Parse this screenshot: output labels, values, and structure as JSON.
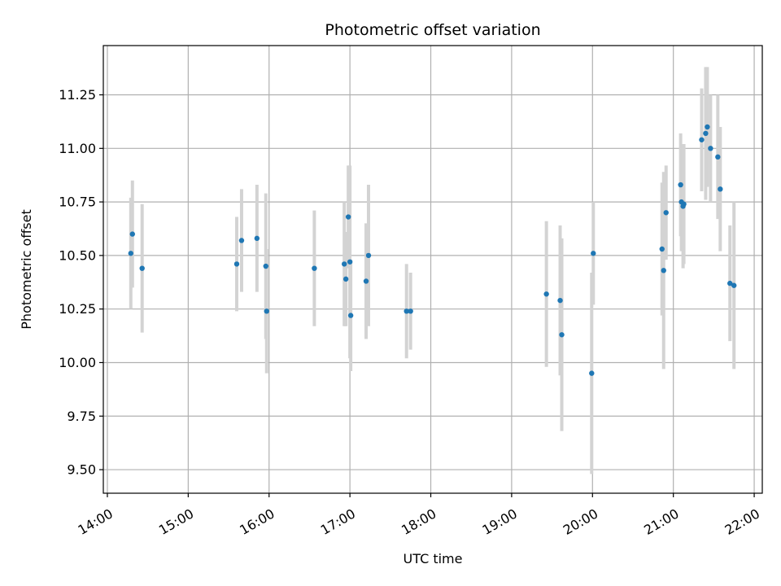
{
  "chart_data": {
    "type": "scatter",
    "title": "Photometric offset variation",
    "xlabel": "UTC time",
    "ylabel": "Photometric offset",
    "x_unit": "hours UTC",
    "xlim": [
      13.95,
      22.1
    ],
    "ylim": [
      9.39,
      11.48
    ],
    "x_ticks": [
      {
        "value": 14,
        "label": "14:00"
      },
      {
        "value": 15,
        "label": "15:00"
      },
      {
        "value": 16,
        "label": "16:00"
      },
      {
        "value": 17,
        "label": "17:00"
      },
      {
        "value": 18,
        "label": "18:00"
      },
      {
        "value": 19,
        "label": "19:00"
      },
      {
        "value": 20,
        "label": "20:00"
      },
      {
        "value": 21,
        "label": "21:00"
      },
      {
        "value": 22,
        "label": "22:00"
      }
    ],
    "y_ticks": [
      {
        "value": 9.5,
        "label": "9.50"
      },
      {
        "value": 9.75,
        "label": "9.75"
      },
      {
        "value": 10.0,
        "label": "10.00"
      },
      {
        "value": 10.25,
        "label": "10.25"
      },
      {
        "value": 10.5,
        "label": "10.50"
      },
      {
        "value": 10.75,
        "label": "10.75"
      },
      {
        "value": 11.0,
        "label": "11.00"
      },
      {
        "value": 11.25,
        "label": "11.25"
      }
    ],
    "grid": true,
    "colors": {
      "point": "#1f77b4",
      "errorbar": "#d3d3d3",
      "grid": "#b0b0b0"
    },
    "points": [
      {
        "x": 14.29,
        "y": 10.51,
        "yerr": 0.26
      },
      {
        "x": 14.31,
        "y": 10.6,
        "yerr": 0.25
      },
      {
        "x": 14.43,
        "y": 10.44,
        "yerr": 0.3
      },
      {
        "x": 15.6,
        "y": 10.46,
        "yerr": 0.22
      },
      {
        "x": 15.66,
        "y": 10.57,
        "yerr": 0.24
      },
      {
        "x": 15.85,
        "y": 10.58,
        "yerr": 0.25
      },
      {
        "x": 15.96,
        "y": 10.45,
        "yerr": 0.34
      },
      {
        "x": 15.97,
        "y": 10.24,
        "yerr": 0.29
      },
      {
        "x": 16.56,
        "y": 10.44,
        "yerr": 0.27
      },
      {
        "x": 16.93,
        "y": 10.46,
        "yerr": 0.29
      },
      {
        "x": 16.95,
        "y": 10.39,
        "yerr": 0.22
      },
      {
        "x": 16.98,
        "y": 10.68,
        "yerr": 0.24
      },
      {
        "x": 17.0,
        "y": 10.47,
        "yerr": 0.45
      },
      {
        "x": 17.01,
        "y": 10.22,
        "yerr": 0.26
      },
      {
        "x": 17.2,
        "y": 10.38,
        "yerr": 0.27
      },
      {
        "x": 17.23,
        "y": 10.5,
        "yerr": 0.33
      },
      {
        "x": 17.7,
        "y": 10.24,
        "yerr": 0.22
      },
      {
        "x": 17.75,
        "y": 10.24,
        "yerr": 0.18
      },
      {
        "x": 19.43,
        "y": 10.32,
        "yerr": 0.34
      },
      {
        "x": 19.6,
        "y": 10.29,
        "yerr": 0.35
      },
      {
        "x": 19.62,
        "y": 10.13,
        "yerr": 0.45
      },
      {
        "x": 19.99,
        "y": 9.95,
        "yerr": 0.47
      },
      {
        "x": 20.01,
        "y": 10.51,
        "yerr": 0.24
      },
      {
        "x": 20.86,
        "y": 10.53,
        "yerr": 0.31
      },
      {
        "x": 20.88,
        "y": 10.43,
        "yerr": 0.46
      },
      {
        "x": 20.91,
        "y": 10.7,
        "yerr": 0.22
      },
      {
        "x": 21.09,
        "y": 10.83,
        "yerr": 0.24
      },
      {
        "x": 21.1,
        "y": 10.75,
        "yerr": 0.23
      },
      {
        "x": 21.12,
        "y": 10.73,
        "yerr": 0.29
      },
      {
        "x": 21.13,
        "y": 10.74,
        "yerr": 0.28
      },
      {
        "x": 21.35,
        "y": 11.04,
        "yerr": 0.24
      },
      {
        "x": 21.4,
        "y": 11.07,
        "yerr": 0.31
      },
      {
        "x": 21.42,
        "y": 11.1,
        "yerr": 0.28
      },
      {
        "x": 21.46,
        "y": 11.0,
        "yerr": 0.25
      },
      {
        "x": 21.55,
        "y": 10.96,
        "yerr": 0.29
      },
      {
        "x": 21.58,
        "y": 10.81,
        "yerr": 0.29
      },
      {
        "x": 21.7,
        "y": 10.37,
        "yerr": 0.27
      },
      {
        "x": 21.75,
        "y": 10.36,
        "yerr": 0.39
      }
    ]
  }
}
